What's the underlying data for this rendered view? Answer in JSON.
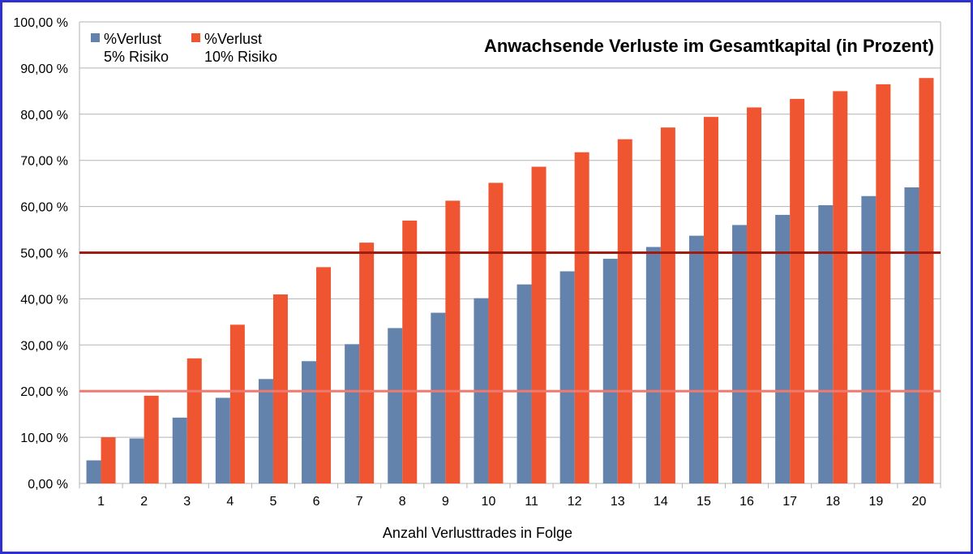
{
  "chart_data": {
    "type": "bar",
    "title": "Anwachsende Verluste im Gesamtkapital (in Prozent)",
    "xlabel": "Anzahl Verlusttrades in Folge",
    "ylabel": "",
    "categories": [
      "1",
      "2",
      "3",
      "4",
      "5",
      "6",
      "7",
      "8",
      "9",
      "10",
      "11",
      "12",
      "13",
      "14",
      "15",
      "16",
      "17",
      "18",
      "19",
      "20"
    ],
    "series": [
      {
        "name": "%Verlust\n5% Risiko",
        "name_lines": [
          "%Verlust",
          "5% Risiko"
        ],
        "color": "#6382ac",
        "values": [
          5.0,
          9.75,
          14.26,
          18.55,
          22.62,
          26.49,
          30.17,
          33.66,
          36.98,
          40.13,
          43.12,
          45.96,
          48.67,
          51.23,
          53.67,
          55.99,
          58.19,
          60.28,
          62.26,
          64.15
        ]
      },
      {
        "name": "%Verlust\n10% Risiko",
        "name_lines": [
          "%Verlust",
          "10% Risiko"
        ],
        "color": "#ee5530",
        "values": [
          10.0,
          19.0,
          27.1,
          34.39,
          40.95,
          46.86,
          52.17,
          56.95,
          61.26,
          65.13,
          68.62,
          71.76,
          74.58,
          77.12,
          79.41,
          81.47,
          83.32,
          84.99,
          86.49,
          87.84
        ]
      }
    ],
    "reference_lines": [
      {
        "value": 50,
        "color": "#a01c10"
      },
      {
        "value": 20,
        "color": "#f07a70"
      }
    ],
    "ylim": [
      0,
      100
    ],
    "yticks": [
      "0,00 %",
      "10,00 %",
      "20,00 %",
      "30,00 %",
      "40,00 %",
      "50,00 %",
      "60,00 %",
      "70,00 %",
      "80,00 %",
      "90,00 %",
      "100,00 %"
    ],
    "grid": true,
    "legend": "top-left",
    "border_color": "#3030d0"
  }
}
